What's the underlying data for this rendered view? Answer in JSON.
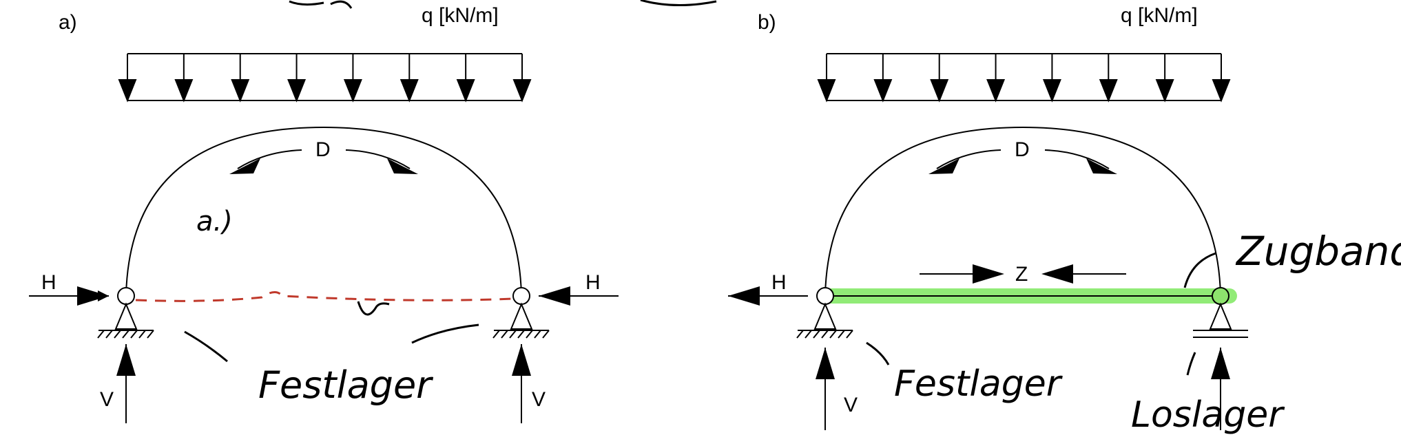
{
  "panels": [
    {
      "label": "a)",
      "load": "q [kN/m]",
      "arch_force": "D",
      "left_horizontal": "H",
      "right_horizontal": "H",
      "left_vertical": "V",
      "right_vertical": "V",
      "handwritten": {
        "note": "a.)",
        "bearing": "Festlager"
      }
    },
    {
      "label": "b)",
      "load": "q [kN/m]",
      "arch_force": "D",
      "tie_force": "Z",
      "left_horizontal": "H",
      "left_vertical": "V",
      "handwritten": {
        "tie": "Zugband",
        "fixed": "Festlager",
        "roller": "Loslager"
      }
    }
  ],
  "colors": {
    "tie_highlight": "#7ee860",
    "tie_red_dashed": "#c0392b",
    "line": "#000000"
  }
}
